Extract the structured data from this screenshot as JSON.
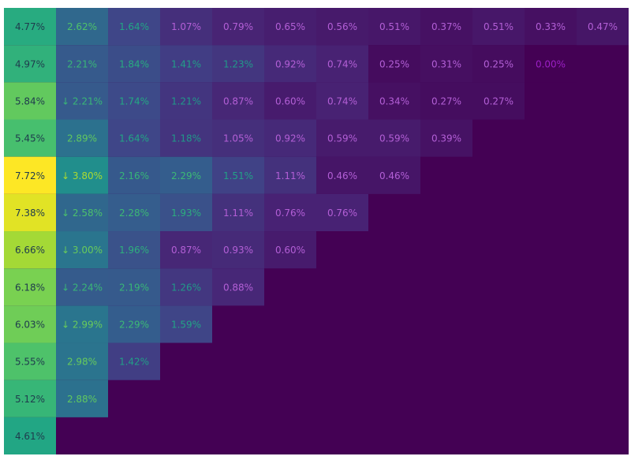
{
  "chart_data": {
    "type": "heatmap",
    "title": "",
    "xlabel": "",
    "ylabel": "",
    "colormap": "viridis",
    "value_range": [
      0.0,
      7.72
    ],
    "background_color": "#440154",
    "rows": [
      {
        "labels": [
          "4.77%",
          "2.62%",
          "1.64%",
          "1.07%",
          "0.79%",
          "0.65%",
          "0.56%",
          "0.51%",
          "0.37%",
          "0.51%",
          "0.33%",
          "0.47%"
        ],
        "values": [
          4.77,
          2.62,
          1.64,
          1.07,
          0.79,
          0.65,
          0.56,
          0.51,
          0.37,
          0.51,
          0.33,
          0.47
        ]
      },
      {
        "labels": [
          "4.97%",
          "2.21%",
          "1.84%",
          "1.41%",
          "1.23%",
          "0.92%",
          "0.74%",
          "0.25%",
          "0.31%",
          "0.25%",
          "0.00%"
        ],
        "values": [
          4.97,
          2.21,
          1.84,
          1.41,
          1.23,
          0.92,
          0.74,
          0.25,
          0.31,
          0.25,
          0.0
        ]
      },
      {
        "labels": [
          "5.84%",
          "↓ 2.21%",
          "1.74%",
          "1.21%",
          "0.87%",
          "0.60%",
          "0.74%",
          "0.34%",
          "0.27%",
          "0.27%"
        ],
        "values": [
          5.84,
          2.21,
          1.74,
          1.21,
          0.87,
          0.6,
          0.74,
          0.34,
          0.27,
          0.27
        ]
      },
      {
        "labels": [
          "5.45%",
          "2.89%",
          "1.64%",
          "1.18%",
          "1.05%",
          "0.92%",
          "0.59%",
          "0.59%",
          "0.39%"
        ],
        "values": [
          5.45,
          2.89,
          1.64,
          1.18,
          1.05,
          0.92,
          0.59,
          0.59,
          0.39
        ]
      },
      {
        "labels": [
          "7.72%",
          "↓ 3.80%",
          "2.16%",
          "2.29%",
          "1.51%",
          "1.11%",
          "0.46%",
          "0.46%"
        ],
        "values": [
          7.72,
          3.8,
          2.16,
          2.29,
          1.51,
          1.11,
          0.46,
          0.46
        ]
      },
      {
        "labels": [
          "7.38%",
          "↓ 2.58%",
          "2.28%",
          "1.93%",
          "1.11%",
          "0.76%",
          "0.76%"
        ],
        "values": [
          7.38,
          2.58,
          2.28,
          1.93,
          1.11,
          0.76,
          0.76
        ]
      },
      {
        "labels": [
          "6.66%",
          "↓ 3.00%",
          "1.96%",
          "0.87%",
          "0.93%",
          "0.60%"
        ],
        "values": [
          6.66,
          3.0,
          1.96,
          0.87,
          0.93,
          0.6
        ]
      },
      {
        "labels": [
          "6.18%",
          "↓ 2.24%",
          "2.19%",
          "1.26%",
          "0.88%"
        ],
        "values": [
          6.18,
          2.24,
          2.19,
          1.26,
          0.88
        ]
      },
      {
        "labels": [
          "6.03%",
          "↓ 2.99%",
          "2.29%",
          "1.59%"
        ],
        "values": [
          6.03,
          2.99,
          2.29,
          1.59
        ]
      },
      {
        "labels": [
          "5.55%",
          "2.98%",
          "1.42%"
        ],
        "values": [
          5.55,
          2.98,
          1.42
        ]
      },
      {
        "labels": [
          "5.12%",
          "2.88%"
        ],
        "values": [
          5.12,
          2.88
        ]
      },
      {
        "labels": [
          "4.61%"
        ],
        "values": [
          4.61
        ]
      }
    ]
  }
}
